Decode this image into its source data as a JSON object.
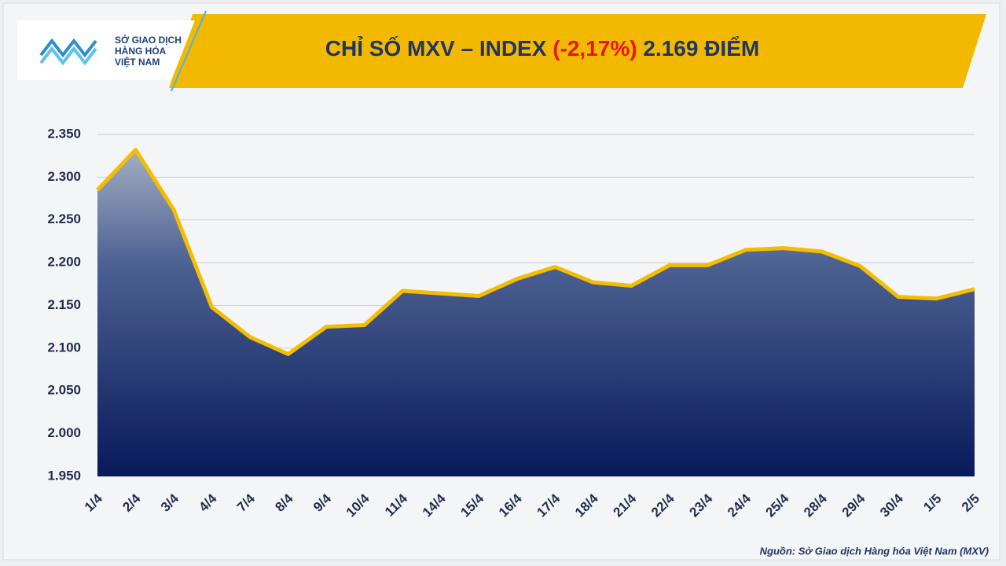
{
  "logo": {
    "lines": [
      "SỞ GIAO DỊCH",
      "HÀNG HÓA",
      "VIỆT NAM"
    ]
  },
  "chart_data": {
    "type": "area",
    "title": "CHỈ SỐ MXV – INDEX",
    "title_change": "(-2,17%)",
    "title_value": "2.169 ĐIỂM",
    "categories": [
      "1/4",
      "2/4",
      "3/4",
      "4/4",
      "7/4",
      "8/4",
      "9/4",
      "10/4",
      "11/4",
      "14/4",
      "15/4",
      "16/4",
      "17/4",
      "18/4",
      "21/4",
      "22/4",
      "23/4",
      "24/4",
      "25/4",
      "28/4",
      "29/4",
      "30/4",
      "1/5",
      "2/5"
    ],
    "values": [
      2285,
      2332,
      2262,
      2148,
      2113,
      2093,
      2125,
      2127,
      2167,
      2164,
      2161,
      2181,
      2195,
      2177,
      2173,
      2197,
      2197,
      2215,
      2217,
      2213,
      2196,
      2160,
      2158,
      2169
    ],
    "color": "#f5bd00",
    "ylim": [
      1950,
      2350
    ],
    "yticks": [
      {
        "value": 1950,
        "label": "1.950"
      },
      {
        "value": 2000,
        "label": "2.000"
      },
      {
        "value": 2050,
        "label": "2.050"
      },
      {
        "value": 2100,
        "label": "2.100"
      },
      {
        "value": 2150,
        "label": "2.150"
      },
      {
        "value": 2200,
        "label": "2.200"
      },
      {
        "value": 2250,
        "label": "2.250"
      },
      {
        "value": 2300,
        "label": "2.300"
      },
      {
        "value": 2350,
        "label": "2.350"
      }
    ],
    "grid": true,
    "source": "Nguồn: Sở Giao dịch Hàng hóa Việt Nam (MXV)"
  }
}
